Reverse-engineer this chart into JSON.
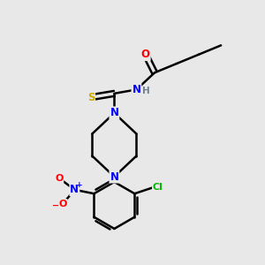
{
  "bg_color": "#e8e8e8",
  "atom_colors": {
    "C": "#000000",
    "N": "#0000ff",
    "O": "#ff0000",
    "S": "#ccaa00",
    "Cl": "#00bb00",
    "H": "#708090"
  },
  "bond_color": "#000000",
  "bond_width": 1.8
}
